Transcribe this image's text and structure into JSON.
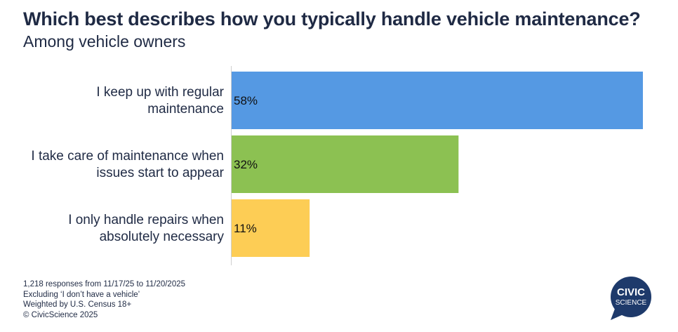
{
  "title": "Which best describes how you typically handle vehicle maintenance?",
  "subtitle": "Among vehicle owners",
  "chart_data": {
    "type": "bar",
    "orientation": "horizontal",
    "title": "Which best describes how you typically handle vehicle maintenance?",
    "subtitle": "Among vehicle owners",
    "categories": [
      [
        "I keep up with regular",
        "maintenance"
      ],
      [
        "I take care of maintenance when",
        "issues start to appear"
      ],
      [
        "I only handle repairs when",
        "absolutely necessary"
      ]
    ],
    "values": [
      58,
      32,
      11
    ],
    "value_labels": [
      "58%",
      "32%",
      "11%"
    ],
    "colors": [
      "#5599e3",
      "#8cc152",
      "#fdcd55"
    ],
    "xlim": [
      0,
      58
    ],
    "grid": false
  },
  "footnotes": [
    "1,218 responses from 11/17/25 to 11/20/2025",
    "Excluding ‘I don’t have a vehicle’",
    "Weighted by U.S. Census 18+",
    "© CivicScience 2025"
  ],
  "logo": {
    "line1": "CIVIC",
    "line2": "SCIENCE",
    "color": "#1e3a6b"
  }
}
